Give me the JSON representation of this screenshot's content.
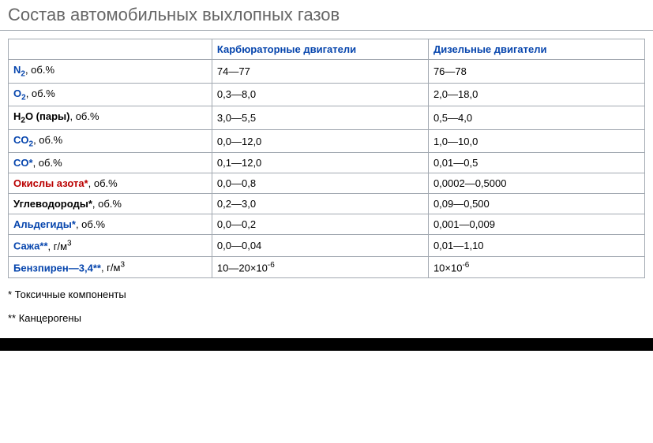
{
  "title": "Состав автомобильных выхлопных газов",
  "columns": {
    "empty": "",
    "carb": "Карбюраторные двигатели",
    "diesel": "Дизельные двигатели"
  },
  "rows": [
    {
      "chem": "N",
      "sub": "2",
      "chemClass": "chem",
      "suffix": ", об.%",
      "carb": "74—77",
      "diesel": "76—78"
    },
    {
      "chem": "O",
      "sub": "2",
      "chemClass": "chem",
      "suffix": ", об.%",
      "carb": "0,3—8,0",
      "diesel": "2,0—18,0"
    },
    {
      "chem": "H",
      "sub": "2",
      "chemAfter": "O (пары)",
      "chemClass": "chem black",
      "suffix": ", об.%",
      "carb": "3,0—5,5",
      "diesel": "0,5—4,0"
    },
    {
      "chem": "CO",
      "sub": "2",
      "chemClass": "chem",
      "suffix": ", об.%",
      "carb": "0,0—12,0",
      "diesel": "1,0—10,0"
    },
    {
      "chem": "CO*",
      "chemClass": "chem",
      "suffix": ", об.%",
      "carb": "0,1—12,0",
      "diesel": "0,01—0,5"
    },
    {
      "chem": "Окислы азота*",
      "chemClass": "chem red",
      "suffix": ", об.%",
      "carb": "0,0—0,8",
      "diesel": "0,0002—0,5000"
    },
    {
      "chem": "Углеводороды*",
      "chemClass": "chem black",
      "suffix": ", об.%",
      "carb": "0,2—3,0",
      "diesel": "0,09—0,500"
    },
    {
      "chem": "Альдегиды*",
      "chemClass": "chem",
      "suffix": ", об.%",
      "carb": "0,0—0,2",
      "diesel": "0,001—0,009"
    },
    {
      "chem": "Сажа**",
      "chemClass": "chem",
      "suffix": ", г/м",
      "sup": "3",
      "carb": "0,0—0,04",
      "diesel": "0,01—1,10"
    },
    {
      "chem": "Бензпирен—3,4**",
      "chemClass": "chem",
      "suffix": ", г/м",
      "sup": "3",
      "carb": "10—20×10",
      "carbSup": "-6",
      "diesel": "10×10",
      "dieselSup": "-6"
    }
  ],
  "footnotes": {
    "f1": "* Токсичные компоненты",
    "f2": "** Канцерогены"
  },
  "colors": {
    "link": "#0645ad",
    "red": "#ba0000",
    "border": "#a2a9b1",
    "title": "#666666",
    "text": "#000000",
    "bg": "#ffffff"
  },
  "typography": {
    "titleSize": 22,
    "cellSize": 13,
    "family": "Verdana, Arial, sans-serif"
  },
  "tableType": "table",
  "columnWidths": [
    "32%",
    "34%",
    "34%"
  ]
}
